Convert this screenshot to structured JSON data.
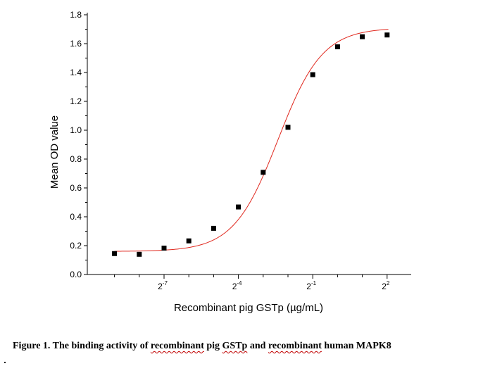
{
  "chart_data": {
    "type": "scatter",
    "x_scale": "log2",
    "ylabel": "Mean OD value",
    "xlabel": "Recombinant pig GSTp (µg/mL)",
    "y_ticks": [
      "0.0",
      "0.2",
      "0.4",
      "0.6",
      "0.8",
      "1.0",
      "1.2",
      "1.4",
      "1.6",
      "1.8"
    ],
    "ylim": [
      0,
      1.8
    ],
    "x_tick_labels": [
      {
        "base": "2",
        "exp": "-7",
        "log2": -7
      },
      {
        "base": "2",
        "exp": "-4",
        "log2": -4
      },
      {
        "base": "2",
        "exp": "-1",
        "log2": -1
      },
      {
        "base": "2",
        "exp": "2",
        "log2": 2
      }
    ],
    "points": [
      {
        "log2x": -9.0,
        "y": 0.145
      },
      {
        "log2x": -8.0,
        "y": 0.14
      },
      {
        "log2x": -7.0,
        "y": 0.183
      },
      {
        "log2x": -6.0,
        "y": 0.233
      },
      {
        "log2x": -5.0,
        "y": 0.32
      },
      {
        "log2x": -4.0,
        "y": 0.468
      },
      {
        "log2x": -3.0,
        "y": 0.708
      },
      {
        "log2x": -2.0,
        "y": 1.02
      },
      {
        "log2x": -1.0,
        "y": 1.385
      },
      {
        "log2x": 0.0,
        "y": 1.578
      },
      {
        "log2x": 1.0,
        "y": 1.648
      },
      {
        "log2x": 2.0,
        "y": 1.66
      }
    ],
    "fit_curve": {
      "type": "4PL",
      "bottom": 0.16,
      "top": 1.71,
      "log2_ec50": -2.4,
      "hill": 0.7
    },
    "grid": false,
    "marker_color": "#000000",
    "fit_color": "#e0281e"
  },
  "caption": {
    "prefix": "Figure 1. The binding activity of ",
    "underlined_1": "recombinant",
    "middle_1": " pig ",
    "underlined_2": "GSTp",
    "middle_2": " and ",
    "underlined_3": "recombinant",
    "suffix": " human MAPK8"
  }
}
